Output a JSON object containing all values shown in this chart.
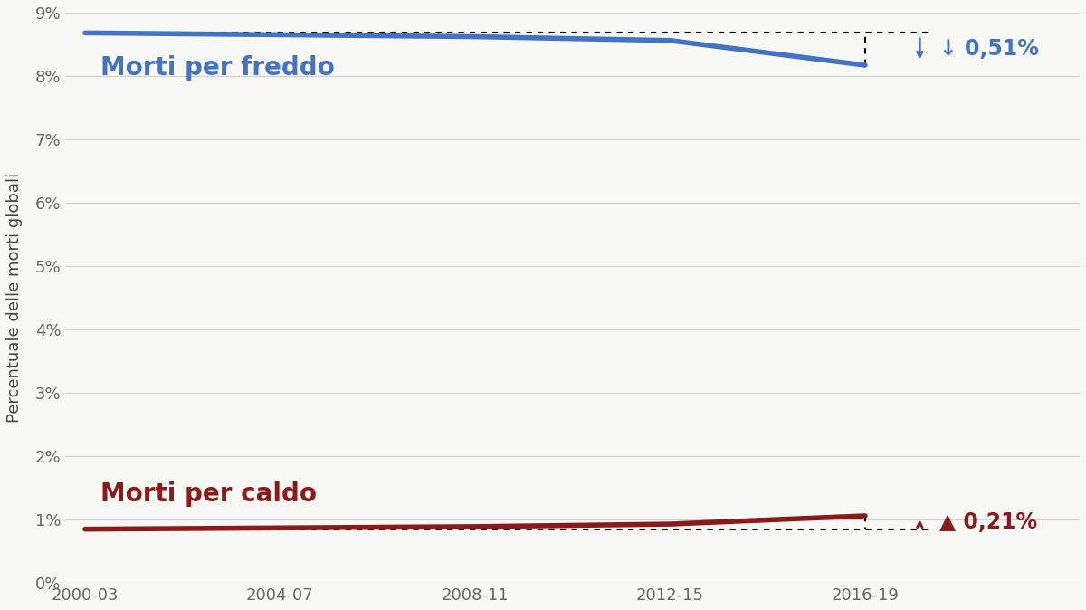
{
  "x_labels": [
    "2000-03",
    "2004-07",
    "2008-11",
    "2012-15",
    "2016-19"
  ],
  "x_positions": [
    0,
    1,
    2,
    3,
    4
  ],
  "cold_deaths": [
    8.68,
    8.65,
    8.62,
    8.56,
    8.17
  ],
  "cold_baseline": 8.68,
  "heat_deaths": [
    0.85,
    0.87,
    0.89,
    0.93,
    1.06
  ],
  "heat_baseline": 0.85,
  "cold_color": "#4472C4",
  "heat_color": "#8B1A1A",
  "cold_label": "Morti per freddo",
  "heat_label": "Morti per caldo",
  "ylabel": "Percentuale delle morti globali",
  "ylim": [
    0,
    9
  ],
  "yticks": [
    0,
    1,
    2,
    3,
    4,
    5,
    6,
    7,
    8,
    9
  ],
  "ytick_labels": [
    "0%",
    "1%",
    "2%",
    "3%",
    "4%",
    "5%",
    "6%",
    "7%",
    "8%",
    "9%"
  ],
  "background_color": "#f8f8f5",
  "grid_color": "#d0d0d0",
  "cold_change": "↓ 0,51%",
  "heat_change": "▲ 0,21%"
}
